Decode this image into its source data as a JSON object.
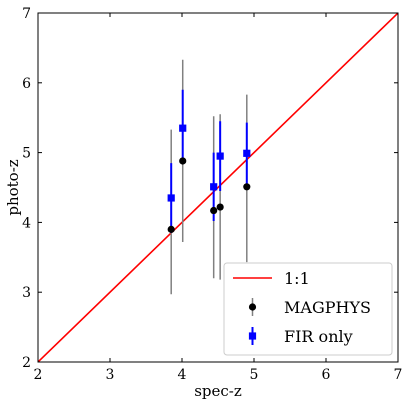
{
  "chart_data": {
    "type": "scatter",
    "xlabel": "spec-z",
    "ylabel": "photo-z",
    "xlim": [
      2,
      7
    ],
    "ylim": [
      2,
      7
    ],
    "xticks": [
      "2",
      "3",
      "4",
      "5",
      "6",
      "7"
    ],
    "yticks": [
      "2",
      "3",
      "4",
      "5",
      "6",
      "7"
    ],
    "grid": false,
    "legend_position": "bottom-right",
    "reference_line": {
      "name": "1:1",
      "color": "#ff0000",
      "x": [
        2,
        7
      ],
      "y": [
        2,
        7
      ]
    },
    "series": [
      {
        "name": "MAGPHYS",
        "marker": "circle",
        "color": "#000000",
        "errorbar_color": "#808080",
        "points": [
          {
            "x": 3.85,
            "y": 3.9,
            "ylo": 2.97,
            "yhi": 5.33
          },
          {
            "x": 4.01,
            "y": 4.88,
            "ylo": 3.72,
            "yhi": 6.33
          },
          {
            "x": 4.44,
            "y": 4.17,
            "ylo": 3.2,
            "yhi": 5.52
          },
          {
            "x": 4.53,
            "y": 4.22,
            "ylo": 3.18,
            "yhi": 5.55
          },
          {
            "x": 4.9,
            "y": 4.51,
            "ylo": 3.43,
            "yhi": 5.83
          }
        ]
      },
      {
        "name": "FIR only",
        "marker": "square",
        "color": "#0000ff",
        "errorbar_color": "#0000ff",
        "points": [
          {
            "x": 3.85,
            "y": 4.35,
            "ylo": 3.85,
            "yhi": 4.85
          },
          {
            "x": 4.01,
            "y": 5.35,
            "ylo": 4.85,
            "yhi": 5.9
          },
          {
            "x": 4.44,
            "y": 4.51,
            "ylo": 4.02,
            "yhi": 5.0
          },
          {
            "x": 4.53,
            "y": 4.95,
            "ylo": 4.45,
            "yhi": 5.45
          },
          {
            "x": 4.9,
            "y": 4.99,
            "ylo": 4.5,
            "yhi": 5.43
          }
        ]
      }
    ]
  }
}
